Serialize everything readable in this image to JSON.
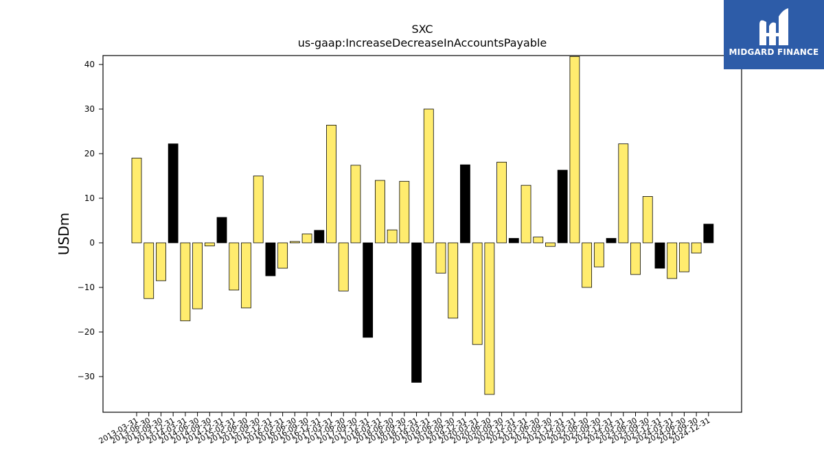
{
  "logo": {
    "text": "MIDGARD FINANCE",
    "background": "#2d5ca8",
    "icon": "midgard-finance-logo-icon"
  },
  "colors": {
    "positive_bar": "#ffec6e",
    "highlight_bar": "#000000",
    "bar_edge": "#000000"
  },
  "chart_data": {
    "type": "bar",
    "title": "SXC",
    "subtitle": "us-gaap:IncreaseDecreaseInAccountsPayable",
    "xlabel": "",
    "ylabel": "USDm",
    "ylim": [
      -38,
      42
    ],
    "yticks": [
      -30,
      -20,
      -10,
      0,
      10,
      20,
      30,
      40
    ],
    "grid": false,
    "categories": [
      "2013-03-31",
      "2013-06-30",
      "2013-09-30",
      "2013-12-31",
      "2014-03-31",
      "2014-06-30",
      "2014-09-30",
      "2014-12-31",
      "2015-03-31",
      "2015-06-30",
      "2015-09-30",
      "2015-12-31",
      "2016-03-31",
      "2016-06-30",
      "2016-09-30",
      "2016-12-31",
      "2017-03-31",
      "2017-06-30",
      "2017-09-30",
      "2017-12-31",
      "2018-03-31",
      "2018-06-30",
      "2018-09-30",
      "2018-12-31",
      "2019-03-31",
      "2019-06-30",
      "2019-09-30",
      "2019-12-31",
      "2020-03-31",
      "2020-06-30",
      "2020-09-30",
      "2020-12-31",
      "2021-03-31",
      "2021-06-30",
      "2021-09-30",
      "2021-12-31",
      "2022-03-31",
      "2022-06-30",
      "2022-09-30",
      "2022-12-31",
      "2023-03-31",
      "2023-06-30",
      "2023-09-30",
      "2023-12-31",
      "2024-03-31",
      "2024-06-30",
      "2024-09-30",
      "2024-12-31"
    ],
    "values": [
      19.0,
      -12.5,
      -8.5,
      22.2,
      -17.5,
      -14.8,
      -0.7,
      5.7,
      -10.6,
      -14.6,
      15.0,
      -7.4,
      -5.7,
      0.3,
      2.0,
      2.8,
      26.4,
      -10.8,
      17.4,
      -21.2,
      14.0,
      2.9,
      13.8,
      -31.3,
      30.0,
      -6.8,
      -16.9,
      17.5,
      -22.8,
      -34.0,
      18.1,
      1.0,
      12.9,
      1.3,
      -0.8,
      16.3,
      41.8,
      -10.0,
      -5.4,
      1.0,
      22.2,
      -7.1,
      10.4,
      -5.7,
      -8.0,
      -6.5,
      -2.3,
      4.2
    ],
    "highlight": [
      false,
      false,
      false,
      true,
      false,
      false,
      false,
      true,
      false,
      false,
      false,
      true,
      false,
      false,
      false,
      true,
      false,
      false,
      false,
      true,
      false,
      false,
      false,
      true,
      false,
      false,
      false,
      true,
      false,
      false,
      false,
      true,
      false,
      false,
      false,
      true,
      false,
      false,
      false,
      true,
      false,
      false,
      false,
      true,
      false,
      false,
      false,
      true
    ]
  }
}
